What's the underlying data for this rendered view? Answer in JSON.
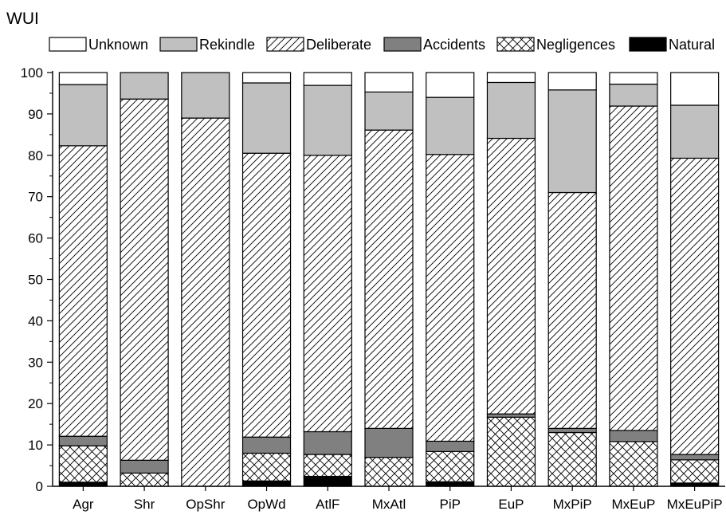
{
  "chart_data": {
    "type": "bar",
    "stacked": true,
    "title": "WUI",
    "xlabel": "",
    "ylabel": "",
    "ylim": [
      0,
      100
    ],
    "yticks": [
      0,
      10,
      20,
      30,
      40,
      50,
      60,
      70,
      80,
      90,
      100
    ],
    "grid": false,
    "legend_position": "top",
    "categories": [
      "Agr",
      "Shr",
      "OpShr",
      "OpWd",
      "AtlF",
      "MxAtl",
      "PiP",
      "EuP",
      "MxPiP",
      "MxEuP",
      "MxEuPiP"
    ],
    "series": [
      {
        "name": "Natural",
        "fill": "solid",
        "color": "#000000",
        "values": [
          1.0,
          0.0,
          0.0,
          1.3,
          2.4,
          0.0,
          1.1,
          0.0,
          0.0,
          0.0,
          0.8
        ]
      },
      {
        "name": "Negligences",
        "fill": "crosshatch",
        "color": "#ffffff",
        "values": [
          8.8,
          3.2,
          0.0,
          6.7,
          5.3,
          7.0,
          7.3,
          16.7,
          13.0,
          10.8,
          5.6
        ]
      },
      {
        "name": "Accidents",
        "fill": "solid",
        "color": "#808080",
        "values": [
          2.3,
          3.1,
          0.0,
          3.9,
          5.5,
          7.0,
          2.5,
          0.8,
          1.0,
          2.7,
          1.3
        ]
      },
      {
        "name": "Deliberate",
        "fill": "diagonal",
        "color": "#ffffff",
        "values": [
          70.2,
          87.3,
          89.0,
          68.6,
          66.8,
          72.1,
          69.3,
          66.6,
          57.0,
          78.4,
          71.6
        ]
      },
      {
        "name": "Rekindle",
        "fill": "solid",
        "color": "#c0c0c0",
        "values": [
          14.8,
          6.4,
          11.0,
          17.0,
          16.9,
          9.2,
          13.8,
          13.5,
          24.8,
          5.3,
          12.8
        ]
      },
      {
        "name": "Unknown",
        "fill": "solid",
        "color": "#ffffff",
        "values": [
          2.9,
          0.0,
          0.0,
          2.5,
          3.1,
          4.7,
          6.0,
          2.4,
          4.2,
          2.8,
          7.9
        ]
      }
    ],
    "legend_order": [
      "Unknown",
      "Rekindle",
      "Deliberate",
      "Accidents",
      "Negligences",
      "Natural"
    ]
  }
}
